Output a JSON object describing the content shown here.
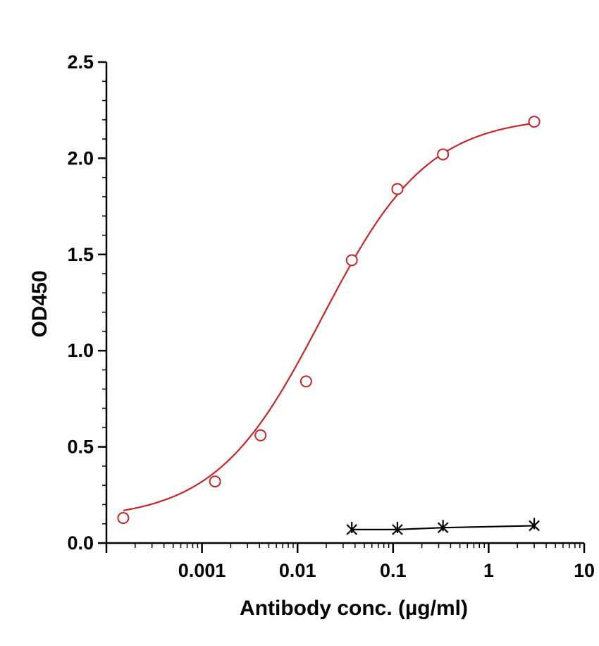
{
  "chart_data": {
    "type": "scatter",
    "title": "",
    "xlabel": "Antibody conc. (µg/ml)",
    "ylabel": "OD450",
    "x_scale": "log",
    "xlim": [
      0.0001,
      10
    ],
    "ylim": [
      0,
      2.5
    ],
    "x_tick_labels": [
      {
        "value": 0.001,
        "label": "0.001"
      },
      {
        "value": 0.01,
        "label": "0.01"
      },
      {
        "value": 0.1,
        "label": "0.1"
      },
      {
        "value": 1,
        "label": "1"
      },
      {
        "value": 10,
        "label": "10"
      }
    ],
    "y_tick_labels": [
      {
        "value": 0.0,
        "label": "0.0"
      },
      {
        "value": 0.5,
        "label": "0.5"
      },
      {
        "value": 1.0,
        "label": "1.0"
      },
      {
        "value": 1.5,
        "label": "1.5"
      },
      {
        "value": 2.0,
        "label": "2.0"
      },
      {
        "value": 2.5,
        "label": "2.5"
      }
    ],
    "grid": false,
    "series": [
      {
        "marker": "open-circle",
        "color": "#c0282b",
        "fit": "four-parameter-logistic",
        "x": [
          0.00015,
          0.00137,
          0.0041,
          0.0123,
          0.037,
          0.111,
          0.333,
          3.0
        ],
        "y": [
          0.13,
          0.32,
          0.56,
          0.84,
          1.47,
          1.84,
          2.02,
          2.19
        ]
      },
      {
        "marker": "x-star",
        "color": "#000000",
        "fit": "connected-line",
        "x": [
          0.037,
          0.111,
          0.333,
          3.0
        ],
        "y": [
          0.07,
          0.07,
          0.08,
          0.09
        ]
      }
    ]
  }
}
